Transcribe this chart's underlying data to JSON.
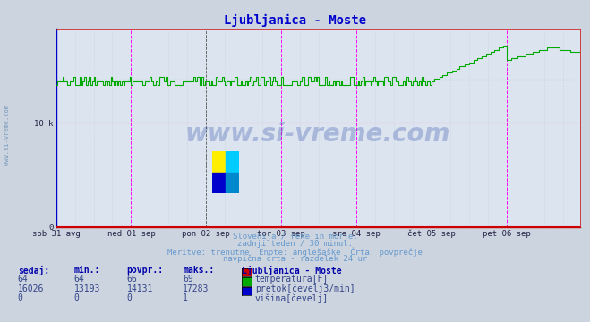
{
  "title": "Ljubljanica - Moste",
  "title_color": "#0000cc",
  "bg_color": "#ccd4e0",
  "plot_bg_color": "#dce4f0",
  "grid_color": "#c0c8d8",
  "x_tick_labels": [
    "sob 31 avg",
    "ned 01 sep",
    "pon 02 sep",
    "tor 03 sep",
    "sre 04 sep",
    "čet 05 sep",
    "pet 06 sep"
  ],
  "x_tick_positions": [
    0,
    48,
    96,
    144,
    192,
    240,
    288
  ],
  "ylim": [
    0,
    19000
  ],
  "ytick_vals": [
    0,
    10000
  ],
  "ytick_labels": [
    "0",
    "10 k"
  ],
  "n_points": 336,
  "temp_sedaj": 64,
  "temp_min": 64,
  "temp_avg": 66,
  "temp_max": 69,
  "flow_sedaj": 16026,
  "flow_min": 13193,
  "flow_avg": 14131,
  "flow_max": 17283,
  "height_sedaj": 0,
  "height_min": 0,
  "height_avg": 0,
  "height_max": 1,
  "temp_color": "#cc0000",
  "flow_color": "#00aa00",
  "height_color": "#0000cc",
  "avg_line_color": "#00bb00",
  "vline_color": "#ff00ff",
  "dark_vline_color": "#555555",
  "hgrid_color": "#ffffff",
  "hline_10k_color": "#ffaaaa",
  "watermark": "www.si-vreme.com",
  "watermark_color": "#3355aa",
  "subtitle1": "Slovenija / reke in morje.",
  "subtitle2": "zadnji teden / 30 minut.",
  "subtitle3": "Meritve: trenutne  Enote: anglešaške  Črta: povprečje",
  "subtitle4": "navpična črta - razdelek 24 ur",
  "text_color": "#6699cc",
  "table_header_color": "#0000aa",
  "table_val_color": "#334488",
  "axis_color": "#cc0000",
  "spine_color": "#0000cc",
  "left_label": "www.si-vreme.com"
}
